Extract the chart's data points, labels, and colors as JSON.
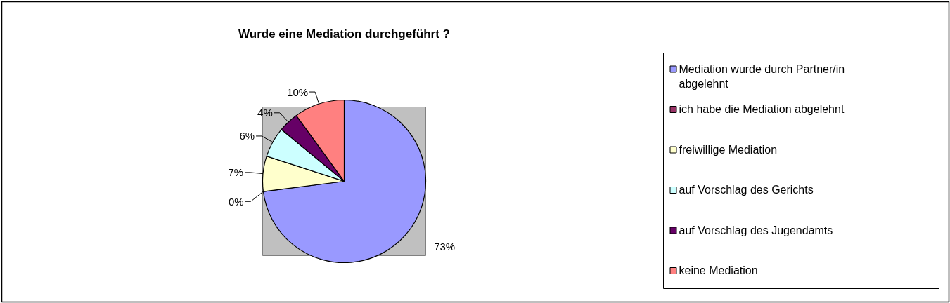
{
  "chart_data": {
    "type": "pie",
    "title": "Wurde eine Mediation durchgeführt ?",
    "categories": [
      "Mediation wurde durch Partner/in abgelehnt",
      "ich habe die Mediation abgelehnt",
      "freiwillige Mediation",
      "auf Vorschlag des Gerichts",
      "auf Vorschlag des Jugendamts",
      "keine Mediation"
    ],
    "values": [
      73,
      0,
      7,
      6,
      4,
      10
    ],
    "value_labels": [
      "73%",
      "0%",
      "7%",
      "6%",
      "4%",
      "10%"
    ],
    "colors": [
      "#9999ff",
      "#993366",
      "#ffffcc",
      "#ccffff",
      "#660066",
      "#ff8080"
    ],
    "legend": "right"
  }
}
